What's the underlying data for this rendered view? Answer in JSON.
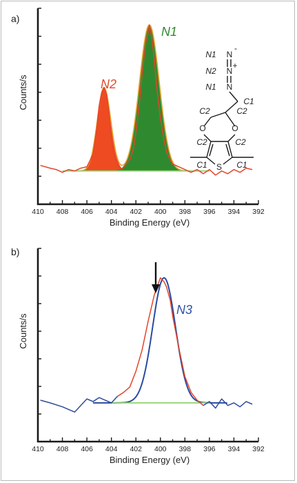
{
  "colors": {
    "spectrum_red": "#e2452a",
    "spectrum_blue": "#2e4a9c",
    "n1_fill": "#2f8a2f",
    "n1_label": "#2e8a2e",
    "n2_fill": "#ef4b22",
    "n2_label": "#e14a2b",
    "n3_label": "#2d52a6",
    "envelope": "#e9a12c",
    "baseline": "#8fd16f",
    "fit_blue": "#2a49a0",
    "arrow": "#111111"
  },
  "chart_data": [
    {
      "type": "line",
      "panel_label": "a)",
      "xlabel": "Binding Energy (eV)",
      "ylabel": "Counts/s",
      "xlim": [
        410,
        392
      ],
      "x_reversed": true,
      "xticks": [
        410,
        408,
        406,
        404,
        402,
        400,
        398,
        396,
        394,
        392
      ],
      "grid": false,
      "ylim": [
        -15,
        110
      ],
      "peaks": [
        {
          "name": "N2",
          "center_eV": 404.6,
          "height": 60,
          "fwhm_eV": 1.3
        },
        {
          "name": "N1",
          "center_eV": 400.9,
          "height": 105,
          "fwhm_eV": 1.9
        }
      ],
      "baseline_range_eV": [
        408,
        396
      ],
      "series": [
        {
          "role": "measured",
          "x": [
            409.8,
            409.0,
            408.5,
            408.0,
            407.5,
            407.0,
            406.5,
            406.0,
            405.5,
            405.2,
            405.0,
            404.8,
            404.6,
            404.4,
            404.2,
            404.0,
            403.8,
            403.5,
            403.2,
            403.0,
            402.5,
            402.2,
            402.0,
            401.7,
            401.5,
            401.2,
            401.0,
            400.9,
            400.7,
            400.5,
            400.3,
            400.0,
            399.7,
            399.5,
            399.2,
            399.0,
            398.5,
            398.0,
            397.5,
            397.0,
            396.5,
            396.0,
            395.5,
            395.0,
            394.5,
            394.0,
            393.5,
            393.0,
            392.5
          ],
          "y": [
            4,
            2,
            1,
            -1,
            1,
            0,
            2,
            3,
            12,
            30,
            47,
            56,
            60,
            55,
            42,
            24,
            12,
            4,
            1,
            3,
            8,
            16,
            28,
            50,
            70,
            92,
            100,
            105,
            96,
            80,
            60,
            38,
            22,
            14,
            8,
            5,
            3,
            1,
            -1,
            1,
            -2,
            1,
            -3,
            0,
            -2,
            1,
            -1,
            2,
            1
          ]
        }
      ],
      "annotations": [
        "N1",
        "N2"
      ],
      "molecule": {
        "labels": [
          "N1",
          "N2",
          "N1",
          "N",
          "N",
          "N",
          "-",
          "+",
          "C1",
          "C2",
          "C2",
          "O",
          "O",
          "C2",
          "C2",
          "C1",
          "C1",
          "S"
        ]
      }
    },
    {
      "type": "line",
      "panel_label": "b)",
      "xlabel": "Binding Energy (eV)",
      "ylabel": "Counts/s",
      "xlim": [
        410,
        392
      ],
      "x_reversed": true,
      "xticks": [
        410,
        408,
        406,
        404,
        402,
        400,
        398,
        396,
        394,
        392
      ],
      "grid": false,
      "ylim": [
        -20,
        110
      ],
      "peaks": [
        {
          "name": "N3",
          "center_eV": 399.7,
          "height": 95,
          "fwhm_eV": 2.2
        }
      ],
      "baseline_range_eV": [
        404,
        396
      ],
      "series": [
        {
          "role": "measured",
          "x": [
            409.8,
            409.0,
            408.0,
            407.0,
            406.5,
            406.0,
            405.5,
            405.0,
            404.5,
            404.0,
            403.5,
            403.0,
            402.5,
            402.0,
            401.5,
            401.0,
            400.5,
            400.0,
            399.7,
            399.5,
            399.2,
            399.0,
            398.5,
            398.0,
            397.5,
            397.0,
            396.5,
            396.0,
            395.5,
            395.0,
            394.5,
            394.0,
            393.5,
            393.0,
            392.5
          ],
          "y": [
            2,
            0,
            -3,
            -7,
            -2,
            3,
            1,
            4,
            2,
            0,
            5,
            8,
            12,
            24,
            40,
            62,
            82,
            95,
            92,
            88,
            78,
            66,
            42,
            20,
            8,
            2,
            -2,
            1,
            -4,
            3,
            -2,
            0,
            -3,
            1,
            -1
          ]
        }
      ],
      "annotations": [
        "N3"
      ]
    }
  ]
}
